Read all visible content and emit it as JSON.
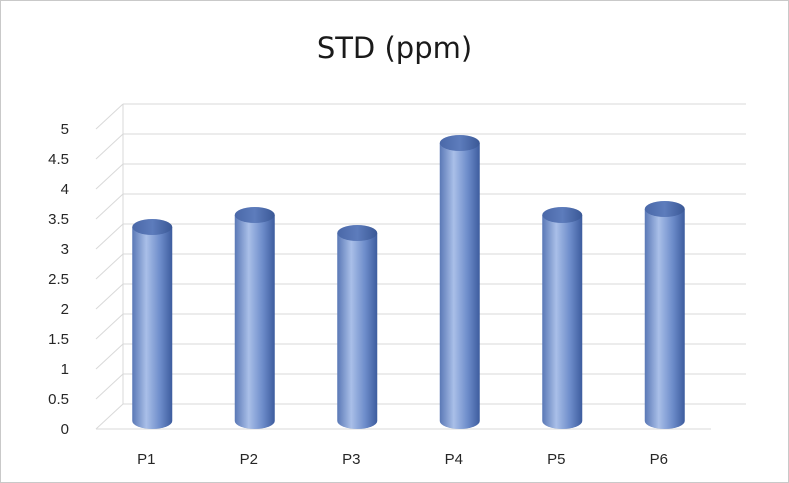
{
  "chart_data": {
    "type": "bar",
    "style": "3d-cylinder",
    "title": "STD (ppm)",
    "xlabel": "",
    "ylabel": "",
    "categories": [
      "P1",
      "P2",
      "P3",
      "P4",
      "P5",
      "P6"
    ],
    "values": [
      3.2,
      3.4,
      3.1,
      4.6,
      3.4,
      3.5
    ],
    "ylim": [
      0,
      5
    ],
    "yticks": [
      "0",
      "0.5",
      "1",
      "1.5",
      "2",
      "2.5",
      "3",
      "3.5",
      "4",
      "4.5",
      "5"
    ],
    "grid": true,
    "legend": "none",
    "colors": {
      "bar": "#6f8fce",
      "bar_dark": "#3d5c9e",
      "bar_light": "#a9bfe8",
      "grid": "#d9d9d9"
    }
  }
}
